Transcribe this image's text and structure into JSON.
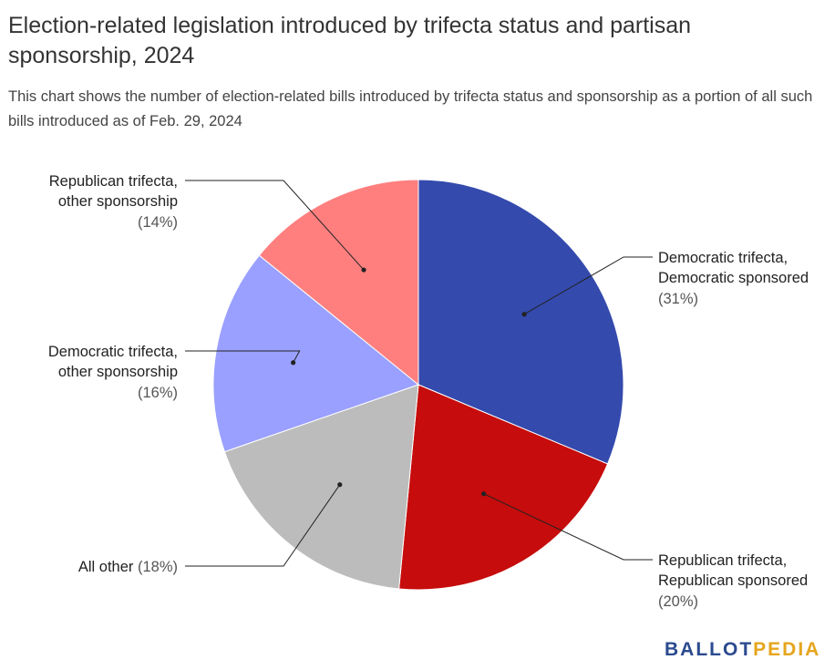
{
  "title": "Election-related legislation introduced by trifecta status and partisan sponsorship, 2024",
  "subtitle": "This chart shows the number of election-related bills introduced by trifecta status and sponsorship as a portion of all such bills introduced as of Feb. 29, 2024",
  "logo": {
    "part1": "BALLOT",
    "part2": "PEDIA"
  },
  "chart_data": {
    "type": "pie",
    "title": "Election-related legislation introduced by trifecta status and partisan sponsorship, 2024",
    "slices": [
      {
        "label_lines": [
          "Democratic trifecta,",
          "Democratic sponsored"
        ],
        "pct_text": "(31%)",
        "value": 31,
        "color": "#344aad"
      },
      {
        "label_lines": [
          "Republican trifecta,",
          "Republican sponsored"
        ],
        "pct_text": "(20%)",
        "value": 20,
        "color": "#c60c0c"
      },
      {
        "label_lines": [
          "All other"
        ],
        "pct_text": "(18%)",
        "value": 18,
        "color": "#bcbcbc"
      },
      {
        "label_lines": [
          "Democratic trifecta,",
          "other sponsorship"
        ],
        "pct_text": "(16%)",
        "value": 16,
        "color": "#9aa0ff"
      },
      {
        "label_lines": [
          "Republican trifecta,",
          "other sponsorship"
        ],
        "pct_text": "(14%)",
        "value": 14,
        "color": "#ff7f7f"
      }
    ]
  }
}
